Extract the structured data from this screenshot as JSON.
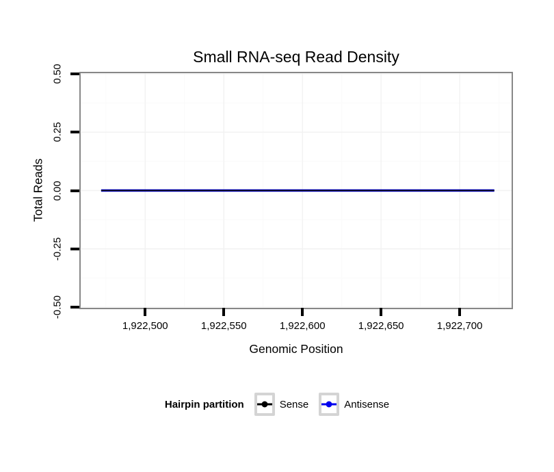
{
  "chart_data": {
    "type": "line",
    "title": "Small RNA-seq Read Density",
    "xlabel": "Genomic Position",
    "ylabel": "Total Reads",
    "xlim": [
      1922459,
      1922733
    ],
    "ylim": [
      -0.503,
      0.503
    ],
    "grid": true,
    "x_ticks": [
      {
        "value": 1922500,
        "label": "1,922,500"
      },
      {
        "value": 1922550,
        "label": "1,922,550"
      },
      {
        "value": 1922600,
        "label": "1,922,600"
      },
      {
        "value": 1922650,
        "label": "1,922,650"
      },
      {
        "value": 1922700,
        "label": "1,922,700"
      }
    ],
    "y_ticks": [
      {
        "value": 0.5,
        "label": "0.50"
      },
      {
        "value": 0.25,
        "label": "0.25"
      },
      {
        "value": 0.0,
        "label": "0.00"
      },
      {
        "value": -0.25,
        "label": "-0.25"
      },
      {
        "value": -0.5,
        "label": "-0.50"
      }
    ],
    "legend_title": "Hairpin partition",
    "legend_position": "bottom",
    "series": [
      {
        "name": "Sense",
        "color": "#000000",
        "points": [
          {
            "x": 1922472,
            "y": 0
          },
          {
            "x": 1922722,
            "y": 0
          }
        ]
      },
      {
        "name": "Antisense",
        "color": "#0000ee",
        "points": [
          {
            "x": 1922472,
            "y": 0
          },
          {
            "x": 1922722,
            "y": 0
          }
        ]
      }
    ]
  },
  "colors": {
    "panel_border": "#878787",
    "grid_major": "#f2f2f2",
    "grid_minor": "#fafafa",
    "tick": "#000000",
    "legend_key_border": "#d4d4d4"
  }
}
